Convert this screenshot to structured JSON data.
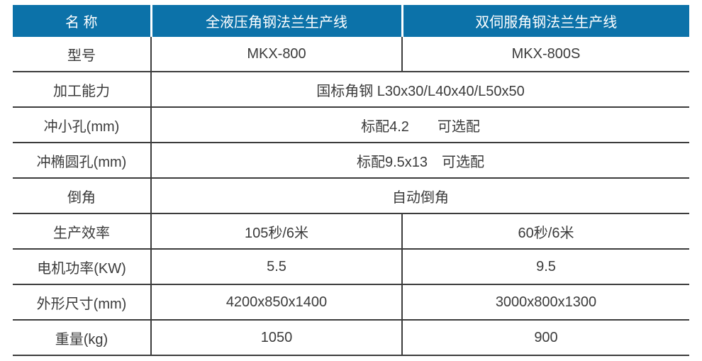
{
  "table": {
    "header": {
      "cells": [
        "名 称",
        "全液压角钢法兰生产线",
        "双伺服角钢法兰生产线"
      ]
    },
    "rows": [
      {
        "label": "型号",
        "values": [
          "MKX-800",
          "MKX-800S"
        ]
      },
      {
        "label": "加工能力",
        "merged": "国标角钢 L30x30/L40x40/L50x50"
      },
      {
        "label": "冲小孔(mm)",
        "merged": "标配4.2　　可选配"
      },
      {
        "label": "冲椭圆孔(mm)",
        "merged": "标配9.5x13　可选配"
      },
      {
        "label": "倒角",
        "merged": "自动倒角"
      },
      {
        "label": "生产效率",
        "values": [
          "105秒/6米",
          "60秒/6米"
        ]
      },
      {
        "label": "电机功率(KW)",
        "values": [
          "5.5",
          "9.5"
        ]
      },
      {
        "label": "外形尺寸(mm)",
        "values": [
          "4200x850x1400",
          "3000x800x1300"
        ]
      },
      {
        "label": "重量(kg)",
        "values": [
          "1050",
          "900"
        ]
      }
    ],
    "colors": {
      "header_bg": "#0c72a9",
      "header_text": "#ffffff",
      "body_text": "#3b3b3b",
      "grid_line": "#3c3c3c"
    }
  }
}
